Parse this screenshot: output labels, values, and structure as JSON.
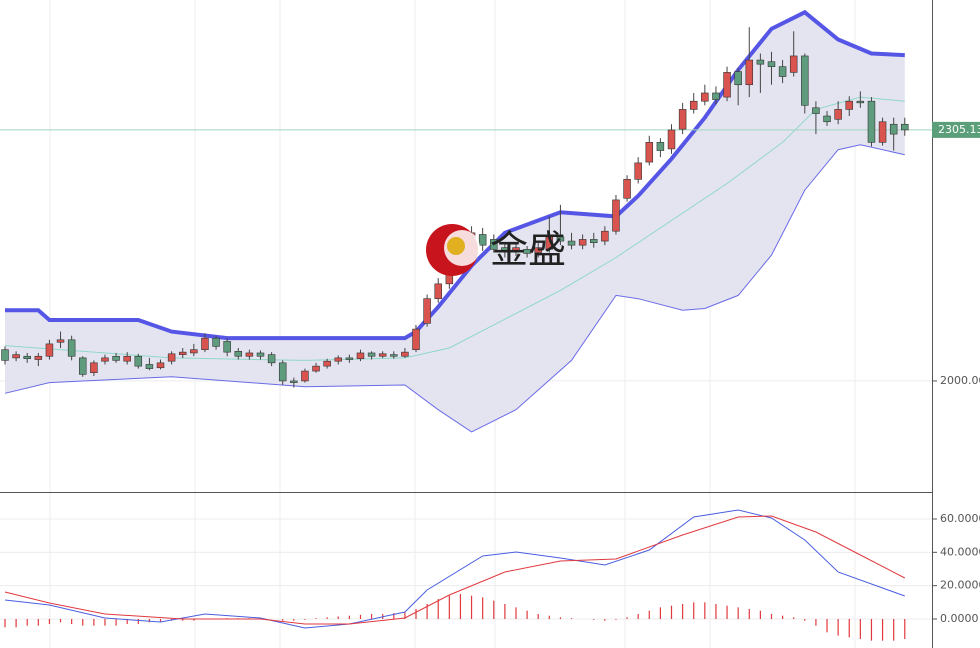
{
  "chart_data": [
    {
      "type": "candlestick",
      "xlim": [
        -0.45,
        83.45
      ],
      "ylim": [
        1865,
        2463
      ],
      "yticks": [
        {
          "value": 2000,
          "label": "2000.00"
        }
      ],
      "last_price": 2305.13,
      "last_price_color": "#5b9e7a",
      "up_color": "#d9534f",
      "down_color": "#5e9c7d",
      "open": [
        2038,
        2028,
        2030,
        2026,
        2030,
        2047,
        2050,
        2028,
        2010,
        2024,
        2030,
        2024,
        2030,
        2020,
        2016,
        2024,
        2032,
        2034,
        2038,
        2052,
        2048,
        2036,
        2030,
        2034,
        2032,
        2022,
        2000,
        2000,
        2012,
        2018,
        2024,
        2028,
        2027,
        2034,
        2030,
        2032,
        2030,
        2038,
        2070,
        2100,
        2118,
        2145,
        2165,
        2178,
        2172,
        2162,
        2158,
        2160,
        2156,
        2160,
        2175,
        2170,
        2165,
        2172,
        2170,
        2182,
        2222,
        2245,
        2266,
        2290,
        2282,
        2306,
        2330,
        2340,
        2350,
        2345,
        2376,
        2360,
        2390,
        2388,
        2382,
        2375,
        2395,
        2332,
        2322,
        2318,
        2330,
        2340,
        2340,
        2290,
        2312,
        2312
      ],
      "high": [
        2042,
        2036,
        2034,
        2034,
        2050,
        2060,
        2055,
        2030,
        2025,
        2032,
        2034,
        2035,
        2033,
        2028,
        2026,
        2036,
        2040,
        2045,
        2058,
        2055,
        2052,
        2040,
        2038,
        2037,
        2035,
        2025,
        2004,
        2015,
        2022,
        2027,
        2031,
        2032,
        2038,
        2036,
        2036,
        2036,
        2040,
        2068,
        2105,
        2125,
        2145,
        2172,
        2188,
        2186,
        2178,
        2166,
        2168,
        2164,
        2170,
        2200,
        2214,
        2180,
        2178,
        2180,
        2188,
        2226,
        2250,
        2272,
        2298,
        2295,
        2312,
        2338,
        2350,
        2360,
        2358,
        2382,
        2380,
        2430,
        2398,
        2400,
        2390,
        2425,
        2398,
        2340,
        2328,
        2340,
        2346,
        2352,
        2345,
        2320,
        2320,
        2320
      ],
      "low": [
        2020,
        2024,
        2022,
        2018,
        2026,
        2040,
        2025,
        2005,
        2006,
        2020,
        2022,
        2020,
        2015,
        2013,
        2014,
        2020,
        2028,
        2030,
        2035,
        2038,
        2030,
        2026,
        2026,
        2026,
        2018,
        1995,
        1992,
        1998,
        2010,
        2015,
        2020,
        2022,
        2024,
        2026,
        2028,
        2027,
        2028,
        2035,
        2066,
        2095,
        2112,
        2140,
        2160,
        2158,
        2156,
        2150,
        2152,
        2150,
        2150,
        2156,
        2165,
        2160,
        2160,
        2162,
        2165,
        2178,
        2218,
        2240,
        2262,
        2272,
        2276,
        2300,
        2325,
        2335,
        2336,
        2340,
        2335,
        2345,
        2350,
        2360,
        2362,
        2370,
        2325,
        2300,
        2310,
        2312,
        2322,
        2332,
        2285,
        2286,
        2280,
        2298
      ],
      "close": [
        2025,
        2032,
        2027,
        2030,
        2045,
        2050,
        2030,
        2008,
        2022,
        2028,
        2025,
        2030,
        2018,
        2015,
        2022,
        2033,
        2035,
        2038,
        2052,
        2042,
        2035,
        2030,
        2034,
        2030,
        2022,
        2000,
        1998,
        2012,
        2018,
        2024,
        2028,
        2026,
        2034,
        2030,
        2033,
        2030,
        2035,
        2063,
        2100,
        2118,
        2140,
        2165,
        2180,
        2165,
        2160,
        2158,
        2162,
        2155,
        2162,
        2175,
        2170,
        2165,
        2172,
        2168,
        2182,
        2220,
        2245,
        2265,
        2290,
        2280,
        2305,
        2330,
        2340,
        2350,
        2342,
        2375,
        2360,
        2390,
        2385,
        2382,
        2370,
        2395,
        2335,
        2325,
        2315,
        2330,
        2340,
        2338,
        2290,
        2315,
        2300,
        2305.13
      ],
      "bands": [
        {
          "x": [
            0,
            3,
            4,
            12,
            15,
            20,
            36,
            37,
            39,
            42,
            45,
            50,
            55,
            57,
            60,
            63,
            66,
            69,
            72,
            75,
            78,
            81
          ],
          "values": [
            2086,
            2086,
            2074,
            2074,
            2060,
            2052,
            2052,
            2060,
            2090,
            2140,
            2180,
            2205,
            2200,
            2225,
            2270,
            2320,
            2378,
            2428,
            2448,
            2415,
            2398,
            2396
          ],
          "color": "#5656e6",
          "width": 4
        },
        {
          "x": [
            0,
            15,
            27,
            36,
            40,
            45,
            50,
            55,
            60,
            65,
            70,
            73,
            77,
            81
          ],
          "values": [
            2043,
            2028,
            2025,
            2028,
            2040,
            2075,
            2110,
            2150,
            2195,
            2240,
            2290,
            2330,
            2345,
            2340
          ],
          "color": "#8fd8c8",
          "width": 1
        },
        {
          "x": [
            0,
            4,
            15,
            27,
            36,
            39,
            42,
            46,
            51,
            55,
            57,
            61,
            63,
            66,
            69,
            72,
            75,
            77,
            81
          ],
          "values": [
            1985,
            1998,
            2005,
            1993,
            1995,
            1965,
            1938,
            1965,
            2025,
            2104,
            2100,
            2086,
            2088,
            2104,
            2153,
            2232,
            2281,
            2287,
            2275
          ],
          "color": "#6a6ae8",
          "width": 1
        }
      ],
      "band_fill": "#e4e4f1"
    },
    {
      "type": "macd",
      "xlim": [
        -0.45,
        83.45
      ],
      "ylim": [
        -17.4,
        75
      ],
      "yticks": [
        {
          "value": 0,
          "label": "0.0000"
        },
        {
          "value": 20,
          "label": "20.0000"
        },
        {
          "value": 40,
          "label": "40.0000"
        },
        {
          "value": 60,
          "label": "60.0000"
        }
      ],
      "lines": [
        {
          "x": [
            0,
            4,
            9,
            14,
            18,
            23,
            27,
            31,
            36,
            38,
            43,
            46,
            50,
            54,
            58,
            62,
            66,
            69,
            72,
            75,
            81
          ],
          "values": [
            11.4,
            8.4,
            0.6,
            -1.8,
            3,
            0.6,
            -5.4,
            -3,
            4.2,
            17.4,
            37.8,
            40.2,
            36.6,
            32.4,
            41.4,
            61.2,
            65.4,
            60.6,
            47.4,
            28.2,
            13.8
          ],
          "color": "#4a5ee0"
        },
        {
          "x": [
            0,
            4,
            9,
            16,
            23,
            27,
            31,
            36,
            40,
            45,
            50,
            55,
            61,
            66,
            69,
            73,
            77,
            81
          ],
          "values": [
            16.2,
            9.6,
            3,
            0,
            0,
            -3,
            -3,
            0.6,
            14.4,
            28.2,
            34.8,
            36,
            50.4,
            61.2,
            61.8,
            52.2,
            38.4,
            24.6
          ],
          "color": "#e0393e"
        }
      ],
      "histogram": [
        -5,
        -5,
        -4,
        -4,
        -3,
        -2,
        -3,
        -4,
        -4,
        -4,
        -4,
        -3,
        -3,
        -2,
        -2,
        -1,
        -1,
        -1,
        0,
        0,
        0.5,
        0.5,
        0.5,
        0.5,
        0,
        -1,
        -1,
        -0.5,
        0.5,
        1,
        1.5,
        2,
        2.5,
        3,
        3,
        3.5,
        4,
        6,
        9,
        12,
        14,
        15,
        14,
        13,
        11,
        9,
        7,
        5,
        3,
        2,
        1,
        0.5,
        0,
        -0.5,
        -1,
        -0.5,
        1,
        3,
        5,
        7,
        8,
        9,
        10,
        10,
        9,
        8,
        7,
        6,
        5,
        3,
        2,
        1,
        -1,
        -4,
        -8,
        -10,
        -11,
        -12,
        -13,
        -13,
        -13,
        -12
      ],
      "histogram_color": "#e0393e"
    }
  ],
  "watermark": "金盛"
}
